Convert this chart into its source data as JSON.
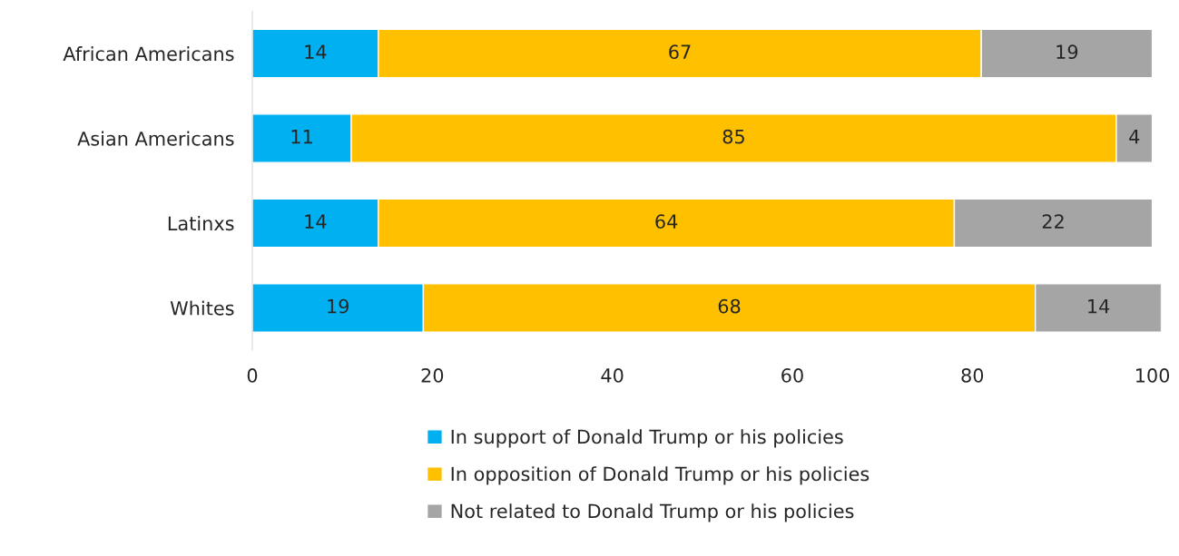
{
  "chart_data": {
    "type": "bar",
    "orientation": "horizontal",
    "stacked": true,
    "data_labels": true,
    "categories": [
      "African Americans",
      "Asian Americans",
      "Latinxs",
      "Whites"
    ],
    "series": [
      {
        "name": "In support of Donald Trump or his policies",
        "color": "#00b0f0",
        "values": [
          14,
          11,
          14,
          19
        ]
      },
      {
        "name": "In opposition of Donald Trump or his policies",
        "color": "#ffc000",
        "values": [
          67,
          85,
          64,
          68
        ]
      },
      {
        "name": "Not related to Donald Trump or his policies",
        "color": "#a5a5a5",
        "values": [
          19,
          4,
          22,
          14
        ]
      }
    ],
    "xlim": [
      0,
      101
    ],
    "xticks": [
      0,
      20,
      40,
      60,
      80,
      100
    ],
    "grid": false,
    "legend": "bottom"
  }
}
